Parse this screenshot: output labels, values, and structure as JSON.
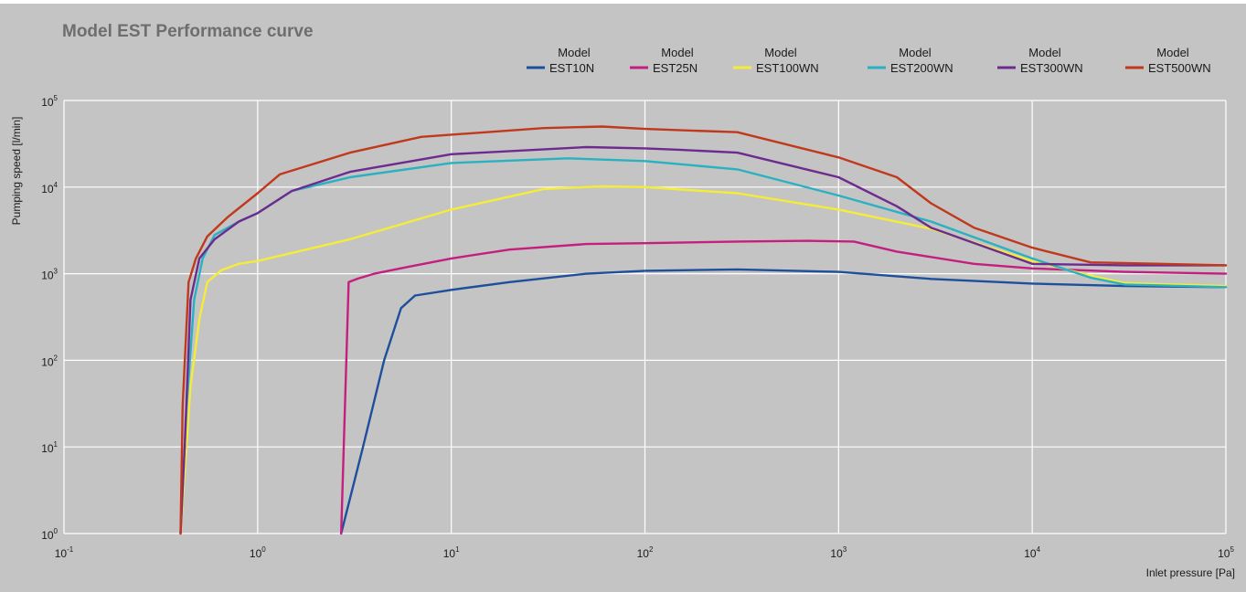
{
  "chart_data": {
    "type": "line",
    "title": "Model EST Performance curve",
    "xlabel": "Inlet pressure [Pa]",
    "ylabel": "Pumping speed [l/min]",
    "xscale": "log",
    "yscale": "log",
    "xlim": [
      0.1,
      100000
    ],
    "ylim": [
      1,
      100000
    ],
    "grid": true,
    "legend_position": "top-right",
    "x_ticks": [
      {
        "base": "10",
        "exp": "-1"
      },
      {
        "base": "10",
        "exp": "0"
      },
      {
        "base": "10",
        "exp": "1"
      },
      {
        "base": "10",
        "exp": "2"
      },
      {
        "base": "10",
        "exp": "3"
      },
      {
        "base": "10",
        "exp": "4"
      },
      {
        "base": "10",
        "exp": "5"
      }
    ],
    "y_ticks": [
      {
        "base": "10",
        "exp": "0"
      },
      {
        "base": "10",
        "exp": "1"
      },
      {
        "base": "10",
        "exp": "2"
      },
      {
        "base": "10",
        "exp": "3"
      },
      {
        "base": "10",
        "exp": "4"
      },
      {
        "base": "10",
        "exp": "5"
      }
    ],
    "series": [
      {
        "legend_top": "Model",
        "name": "EST10N",
        "color": "#1d4f9c",
        "points": [
          [
            2.7,
            1
          ],
          [
            3.5,
            10
          ],
          [
            4.5,
            100
          ],
          [
            5.5,
            400
          ],
          [
            6.5,
            560
          ],
          [
            10,
            650
          ],
          [
            20,
            800
          ],
          [
            50,
            1000
          ],
          [
            100,
            1080
          ],
          [
            300,
            1120
          ],
          [
            1000,
            1050
          ],
          [
            3000,
            870
          ],
          [
            10000,
            770
          ],
          [
            30000,
            720
          ],
          [
            100000,
            700
          ]
        ]
      },
      {
        "legend_top": "Model",
        "name": "EST25N",
        "color": "#c41f7f",
        "points": [
          [
            2.7,
            1
          ],
          [
            2.95,
            800
          ],
          [
            3.3,
            880
          ],
          [
            4,
            1000
          ],
          [
            6,
            1200
          ],
          [
            10,
            1500
          ],
          [
            20,
            1900
          ],
          [
            50,
            2200
          ],
          [
            100,
            2250
          ],
          [
            300,
            2350
          ],
          [
            700,
            2400
          ],
          [
            1200,
            2350
          ],
          [
            2000,
            1800
          ],
          [
            5000,
            1300
          ],
          [
            10000,
            1150
          ],
          [
            30000,
            1050
          ],
          [
            100000,
            1000
          ]
        ]
      },
      {
        "legend_top": "Model",
        "name": "EST100WN",
        "color": "#f5ec3a",
        "points": [
          [
            0.4,
            1
          ],
          [
            0.45,
            50
          ],
          [
            0.5,
            300
          ],
          [
            0.55,
            800
          ],
          [
            0.65,
            1100
          ],
          [
            0.8,
            1300
          ],
          [
            1,
            1400
          ],
          [
            3,
            2500
          ],
          [
            10,
            5500
          ],
          [
            30,
            9500
          ],
          [
            60,
            10200
          ],
          [
            100,
            10000
          ],
          [
            300,
            8500
          ],
          [
            1000,
            5500
          ],
          [
            3000,
            3300
          ],
          [
            10000,
            1400
          ],
          [
            20000,
            950
          ],
          [
            30000,
            780
          ],
          [
            100000,
            720
          ]
        ]
      },
      {
        "legend_top": "Model",
        "name": "EST200WN",
        "color": "#2ab1c1",
        "points": [
          [
            0.4,
            1
          ],
          [
            0.43,
            30
          ],
          [
            0.47,
            500
          ],
          [
            0.52,
            1500
          ],
          [
            0.6,
            2800
          ],
          [
            0.8,
            4000
          ],
          [
            1,
            5000
          ],
          [
            1.5,
            9000
          ],
          [
            3,
            13000
          ],
          [
            10,
            19000
          ],
          [
            40,
            21500
          ],
          [
            100,
            20000
          ],
          [
            300,
            16000
          ],
          [
            1000,
            8000
          ],
          [
            3000,
            4000
          ],
          [
            10000,
            1500
          ],
          [
            20000,
            900
          ],
          [
            30000,
            750
          ],
          [
            100000,
            700
          ]
        ]
      },
      {
        "legend_top": "Model",
        "name": "EST300WN",
        "color": "#6e2b8f",
        "points": [
          [
            0.4,
            1
          ],
          [
            0.42,
            10
          ],
          [
            0.45,
            500
          ],
          [
            0.5,
            1500
          ],
          [
            0.6,
            2500
          ],
          [
            0.8,
            4000
          ],
          [
            1,
            5000
          ],
          [
            1.5,
            9000
          ],
          [
            3,
            15000
          ],
          [
            10,
            24000
          ],
          [
            50,
            29000
          ],
          [
            100,
            28000
          ],
          [
            150,
            27000
          ],
          [
            300,
            25000
          ],
          [
            1000,
            13000
          ],
          [
            2000,
            6000
          ],
          [
            3000,
            3400
          ],
          [
            10000,
            1300
          ],
          [
            30000,
            1250
          ],
          [
            100000,
            1250
          ]
        ]
      },
      {
        "legend_top": "Model",
        "name": "EST500WN",
        "color": "#c0391c",
        "points": [
          [
            0.4,
            1
          ],
          [
            0.41,
            30
          ],
          [
            0.44,
            800
          ],
          [
            0.48,
            1500
          ],
          [
            0.55,
            2700
          ],
          [
            0.7,
            4500
          ],
          [
            1,
            8500
          ],
          [
            1.3,
            14000
          ],
          [
            3,
            25000
          ],
          [
            7,
            38000
          ],
          [
            30,
            48000
          ],
          [
            60,
            50000
          ],
          [
            100,
            47000
          ],
          [
            300,
            43000
          ],
          [
            1000,
            22000
          ],
          [
            2000,
            13000
          ],
          [
            3000,
            6500
          ],
          [
            5000,
            3400
          ],
          [
            10000,
            2000
          ],
          [
            20000,
            1350
          ],
          [
            100000,
            1250
          ]
        ]
      }
    ]
  }
}
